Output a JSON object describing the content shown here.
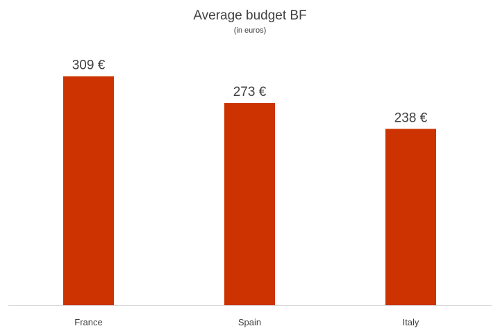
{
  "chart_data": {
    "type": "bar",
    "title": "Average budget BF",
    "subtitle": "(in euros)",
    "categories": [
      "France",
      "Spain",
      "Italy"
    ],
    "values": [
      309,
      273,
      238
    ],
    "data_labels": [
      "309 €",
      "273 €",
      "238 €"
    ],
    "xlabel": "",
    "ylabel": "",
    "ylim": [
      0,
      350
    ],
    "grid": false,
    "legend": "none",
    "bar_color": "#CC3300",
    "axis_color": "#D9D9D9",
    "text_color": "#404040"
  }
}
